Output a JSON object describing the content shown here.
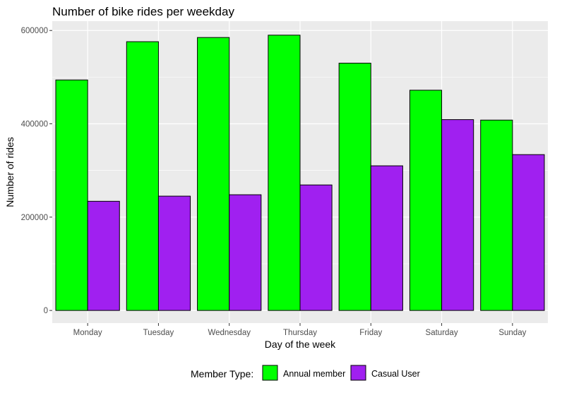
{
  "chart_data": {
    "type": "bar",
    "title": "Number of bike rides per weekday",
    "xlabel": "Day of the week",
    "ylabel": "Number of rides",
    "categories": [
      "Monday",
      "Tuesday",
      "Wednesday",
      "Thursday",
      "Friday",
      "Saturday",
      "Sunday"
    ],
    "series": [
      {
        "name": "Annual member",
        "color": "#00FF00",
        "values": [
          494000,
          576000,
          585000,
          590000,
          530000,
          472000,
          408000
        ]
      },
      {
        "name": "Casual User",
        "color": "#A020F0",
        "values": [
          234000,
          245000,
          248000,
          269000,
          310000,
          409000,
          334000
        ]
      }
    ],
    "y_ticks": [
      0,
      200000,
      400000,
      600000
    ],
    "y_tick_labels": [
      "0",
      "200000",
      "400000",
      "600000"
    ],
    "ylim": [
      -27000,
      620000
    ],
    "grid": true,
    "legend": {
      "title": "Member Type:",
      "position": "bottom"
    },
    "colors": {
      "panel_background": "#EBEBEB",
      "grid": "#FFFFFF",
      "bar_outline": "#000000"
    }
  }
}
